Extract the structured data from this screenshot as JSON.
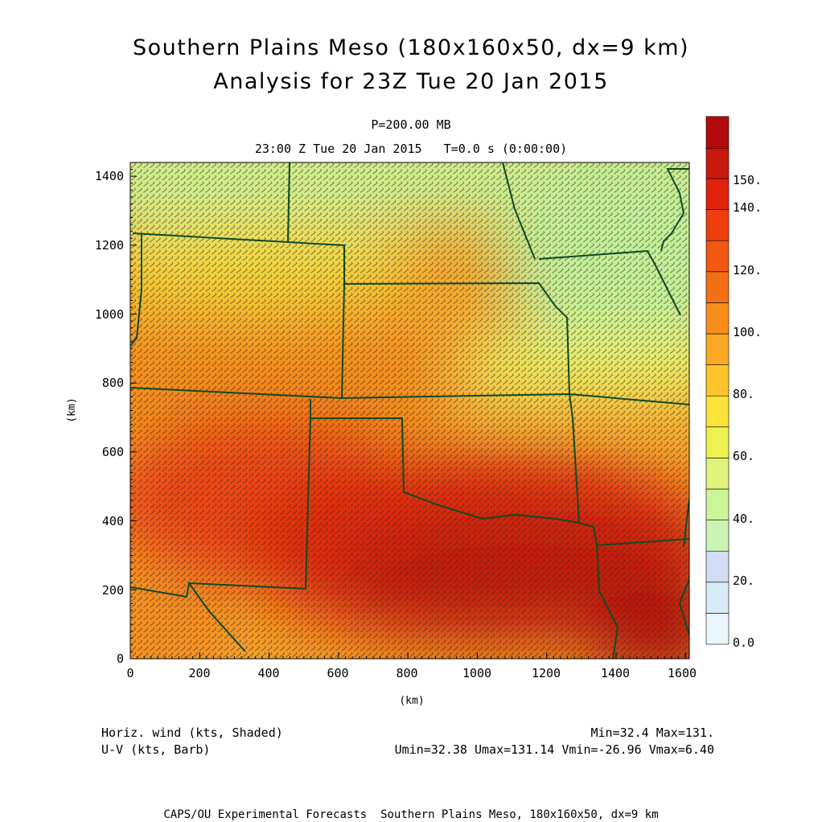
{
  "header": {
    "title_line1": "Southern Plains Meso (180x160x50, dx=9 km)",
    "title_line2": "Analysis for 23Z Tue 20 Jan 2015",
    "pressure": "P=200.00 MB",
    "time_line": "23:00 Z Tue 20 Jan 2015   T=0.0 s (0:00:00)"
  },
  "axes": {
    "x_unit": "(km)",
    "y_unit": "(km)",
    "x_ticks": [
      "0",
      "200",
      "400",
      "600",
      "800",
      "1000",
      "1200",
      "1400",
      "1600"
    ],
    "y_ticks": [
      "0",
      "200",
      "400",
      "600",
      "800",
      "1000",
      "1200",
      "1400"
    ],
    "x_range": [
      0,
      1611
    ],
    "y_range": [
      0,
      1440
    ]
  },
  "colorbar": {
    "labels": [
      "0.0",
      "20.",
      "40.",
      "60.",
      "80.",
      "100.",
      "120.",
      "140.",
      "150."
    ],
    "colors": [
      "#eaf6fb",
      "#d7ecf6",
      "#d4dcf3",
      "#c9f4b4",
      "#ccf59a",
      "#dff27a",
      "#eef250",
      "#fbe33a",
      "#fcc52c",
      "#fba824",
      "#f78e1c",
      "#f37016",
      "#f15812",
      "#ee3e0e",
      "#e0220a",
      "#c81a0a",
      "#b20a0a"
    ]
  },
  "footer": {
    "field1": "Horiz. wind (kts, Shaded)",
    "field2": "U-V (kts, Barb)",
    "minmax": "Min=32.4 Max=131.",
    "uv_stats": "Umin=32.38 Umax=131.14 Vmin=-26.96 Vmax=6.40",
    "credit": "CAPS/OU Experimental Forecasts  Southern Plains Meso, 180x160x50, dx=9 km"
  }
}
